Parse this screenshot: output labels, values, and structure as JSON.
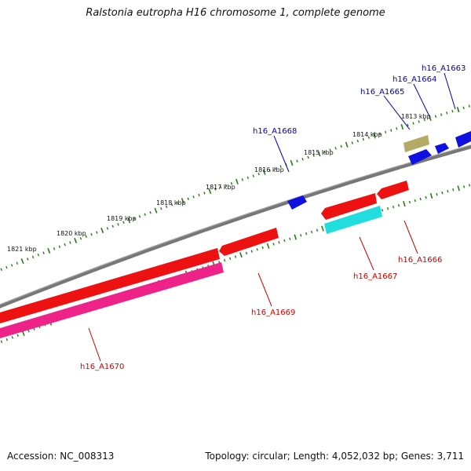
{
  "title": "Ralstonia eutropha H16 chromosome 1, complete genome",
  "footer": {
    "accession": "Accession: NC_008313",
    "summary": "Topology: circular; Length: 4,052,032 bp; Genes: 3,711"
  },
  "colors": {
    "backbone": "#777777",
    "tick": "#2a7a1a",
    "label_forward": "#0000bb",
    "label_reverse": "#cc0000",
    "blue": "#1010e0",
    "red": "#ee1111",
    "pink": "#ee2288",
    "cyan": "#22dddd",
    "olive": "#b4aa66"
  },
  "scale_labels": [
    {
      "text": "1813 kbp"
    },
    {
      "text": "1814 kbp"
    },
    {
      "text": "1815 kbp"
    },
    {
      "text": "1816 kbp"
    },
    {
      "text": "1817 kbp"
    },
    {
      "text": "1818 kbp"
    },
    {
      "text": "1819 kbp"
    },
    {
      "text": "1820 kbp"
    },
    {
      "text": "1821 kbp"
    }
  ],
  "gene_labels": [
    {
      "text": "h16_A1663",
      "strand": "forward"
    },
    {
      "text": "h16_A1664",
      "strand": "forward"
    },
    {
      "text": "h16_A1665",
      "strand": "forward"
    },
    {
      "text": "h16_A1668",
      "strand": "forward"
    },
    {
      "text": "h16_A1666",
      "strand": "reverse"
    },
    {
      "text": "h16_A1667",
      "strand": "reverse"
    },
    {
      "text": "h16_A1669",
      "strand": "reverse"
    },
    {
      "text": "h16_A1670",
      "strand": "reverse"
    }
  ]
}
